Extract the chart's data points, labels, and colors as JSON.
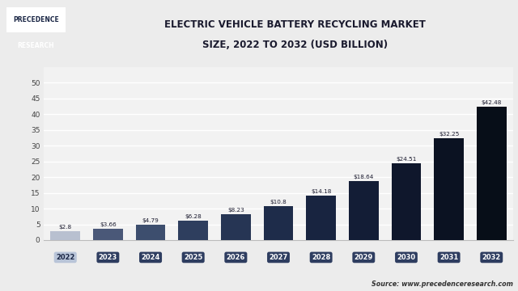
{
  "title_line1": "ELECTRIC VEHICLE BATTERY RECYCLING MARKET",
  "title_line2": "SIZE, 2022 TO 2032 (USD BILLION)",
  "years": [
    "2022",
    "2023",
    "2024",
    "2025",
    "2026",
    "2027",
    "2028",
    "2029",
    "2030",
    "2031",
    "2032"
  ],
  "values": [
    2.8,
    3.66,
    4.79,
    6.28,
    8.23,
    10.8,
    14.18,
    18.64,
    24.51,
    32.25,
    42.48
  ],
  "labels": [
    "$2.8",
    "$3.66",
    "$4.79",
    "$6.28",
    "$8.23",
    "$10.8",
    "$14.18",
    "$18.64",
    "$24.51",
    "$32.25",
    "$42.48"
  ],
  "bar_colors": [
    "#b8c0d0",
    "#4a5878",
    "#3d4e6e",
    "#2e3e5e",
    "#263554",
    "#1e2c4a",
    "#182440",
    "#131d36",
    "#0f172c",
    "#0b1222",
    "#070e18"
  ],
  "ylim": [
    0,
    55
  ],
  "yticks": [
    0,
    5,
    10,
    15,
    20,
    25,
    30,
    35,
    40,
    45,
    50
  ],
  "bg_color": "#ececec",
  "plot_bg_color": "#f2f2f2",
  "grid_color": "#ffffff",
  "title_color": "#1a1a2e",
  "source_text": "Source: www.precedenceresearch.com",
  "logo_text_line1": "PRECEDENCE",
  "logo_text_line2": "RESEARCH",
  "logo_bg": "#1a2645",
  "logo_border_color": "#8899bb",
  "x_label_bg_first": "#b8c4d8",
  "x_label_bg_rest": "#2e3d60",
  "x_label_color_first": "#1a2645",
  "x_label_color_rest": "#ffffff"
}
